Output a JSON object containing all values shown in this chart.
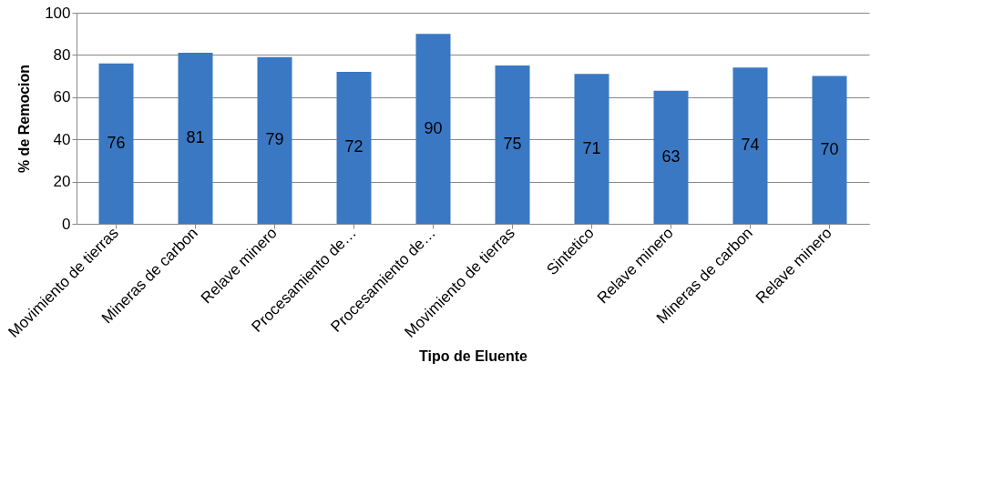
{
  "chart_data": {
    "type": "bar",
    "xlabel": "Tipo de Eluente",
    "ylabel": "% de Remocion",
    "categories": [
      "Movimiento de tierras",
      "Mineras de carbon",
      "Relave minero",
      "Procesamiento de…",
      "Procesamiento de…",
      "Movimiento de tierras",
      "Sintetico",
      "Relave minero",
      "Mineras de carbon",
      "Relave minero"
    ],
    "values": [
      76,
      81,
      79,
      72,
      90,
      75,
      71,
      63,
      74,
      70
    ],
    "color": "#3a78c3",
    "ylim": [
      0,
      100
    ],
    "yticks": [
      0,
      20,
      40,
      60,
      80,
      100
    ],
    "grid": "y",
    "data_labels": true
  }
}
